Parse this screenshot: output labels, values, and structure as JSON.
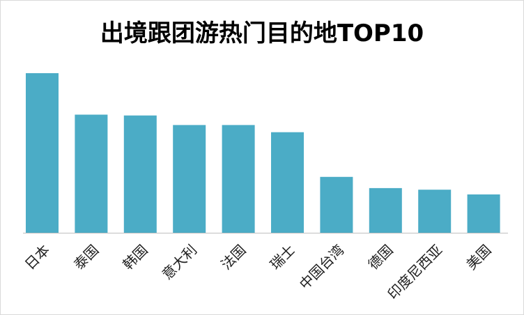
{
  "chart_data": {
    "type": "bar",
    "title": "出境跟团游热门目的地TOP10",
    "categories": [
      "日本",
      "泰国",
      "韩国",
      "意大利",
      "法国",
      "瑞士",
      "中国台湾",
      "德国",
      "印度尼西亚",
      "美国"
    ],
    "values": [
      100,
      74,
      73.5,
      67.5,
      67.5,
      63,
      35,
      28,
      27,
      24
    ],
    "ylim": [
      0,
      100
    ],
    "grid": false,
    "legend": "none",
    "xlabel": "",
    "ylabel": "",
    "colors": {
      "bar": "#4bacc6",
      "axis": "#bfbfbf",
      "text": "#1f1f1f"
    }
  }
}
